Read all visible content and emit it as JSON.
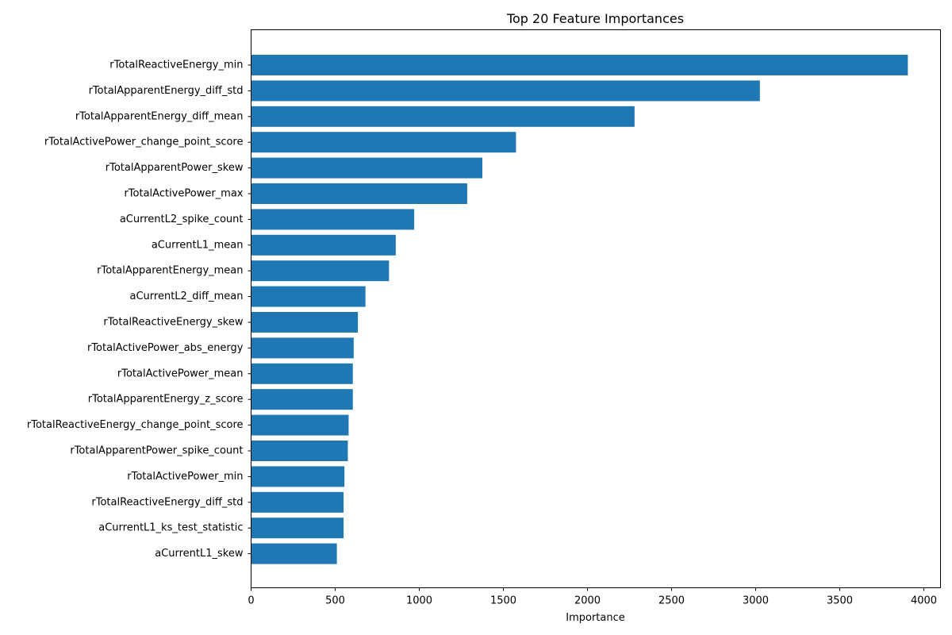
{
  "chart_data": {
    "type": "bar",
    "orientation": "horizontal",
    "title": "Top 20 Feature Importances",
    "xlabel": "Importance",
    "ylabel": "",
    "xlim": [
      0,
      4100
    ],
    "xticks": [
      0,
      500,
      1000,
      1500,
      2000,
      2500,
      3000,
      3500,
      4000
    ],
    "grid": false,
    "bar_color": "#1f77b4",
    "categories": [
      "rTotalReactiveEnergy_min",
      "rTotalApparentEnergy_diff_std",
      "rTotalApparentEnergy_diff_mean",
      "rTotalActivePower_change_point_score",
      "rTotalApparentPower_skew",
      "rTotalActivePower_max",
      "aCurrentL2_spike_count",
      "aCurrentL1_mean",
      "rTotalApparentEnergy_mean",
      "aCurrentL2_diff_mean",
      "rTotalReactiveEnergy_skew",
      "rTotalActivePower_abs_energy",
      "rTotalActivePower_mean",
      "rTotalApparentEnergy_z_score",
      "rTotalReactiveEnergy_change_point_score",
      "rTotalApparentPower_spike_count",
      "rTotalActivePower_min",
      "rTotalReactiveEnergy_diff_std",
      "aCurrentL1_ks_test_statistic",
      "aCurrentL1_skew"
    ],
    "values": [
      3905,
      3025,
      2280,
      1575,
      1375,
      1285,
      970,
      860,
      820,
      680,
      635,
      610,
      605,
      605,
      580,
      575,
      555,
      550,
      550,
      510
    ]
  }
}
